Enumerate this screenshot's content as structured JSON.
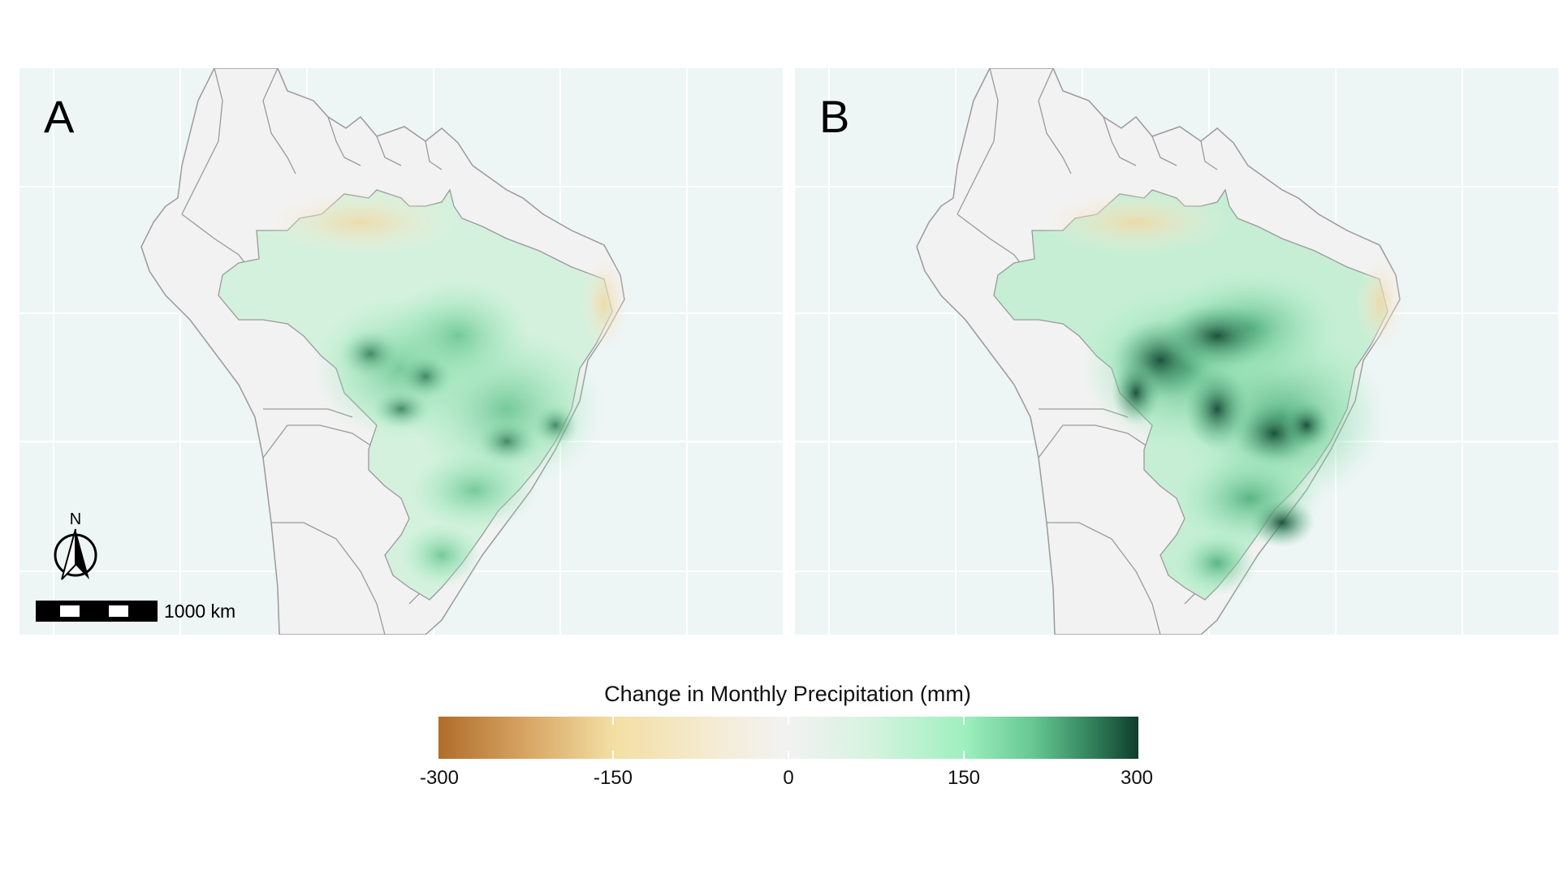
{
  "panels": [
    {
      "label": "A"
    },
    {
      "label": "B"
    }
  ],
  "north_arrow": {
    "letter": "N"
  },
  "scale_bar": {
    "label": "1000 km"
  },
  "legend": {
    "title": "Change in Monthly Precipitation (mm)",
    "ticks": [
      "-300",
      "-150",
      "0",
      "150",
      "300"
    ],
    "colors": {
      "min": "#b06d2a",
      "low": "#f3dfa3",
      "zero": "#f2f2f2",
      "high": "#9ff0bf",
      "max": "#0f3d2c"
    }
  },
  "map_colors": {
    "ocean": "#eef5f5",
    "land": "#f2f2f2",
    "borders": "#9a9a9a"
  }
}
